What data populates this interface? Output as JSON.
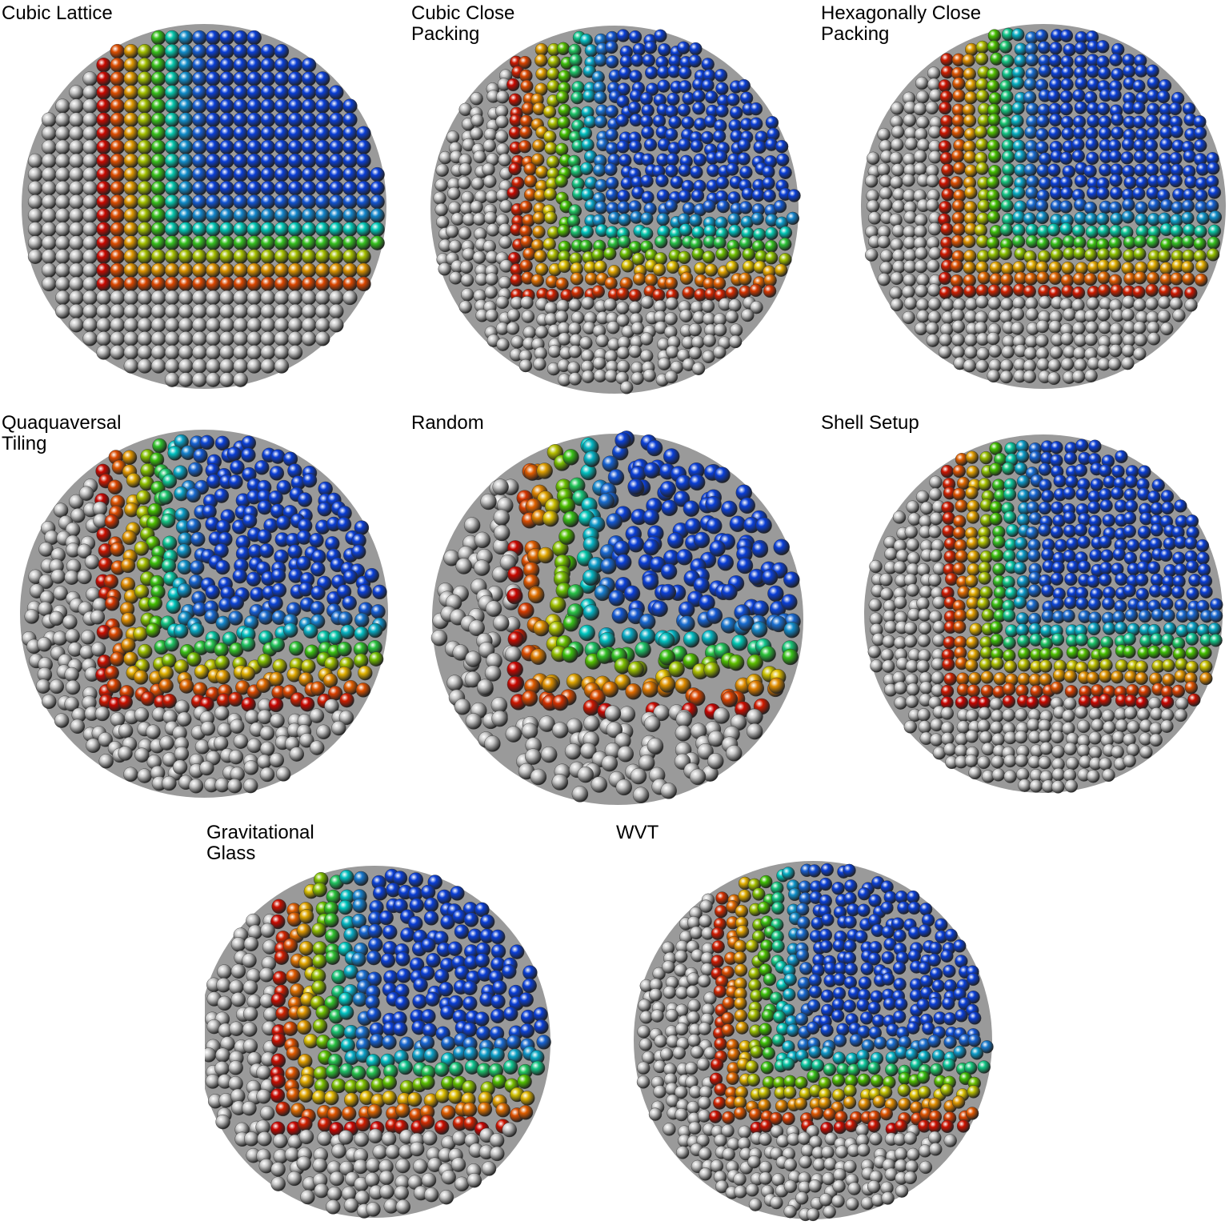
{
  "panels": [
    {
      "label": "Cubic Lattice",
      "arrangement": "lattice"
    },
    {
      "label": "Cubic Close\nPacking",
      "arrangement": "close"
    },
    {
      "label": "Hexagonally Close\nPacking",
      "arrangement": "hex"
    },
    {
      "label": "Quaquaversal\nTiling",
      "arrangement": "tiling"
    },
    {
      "label": "Random",
      "arrangement": "random"
    },
    {
      "label": "Shell Setup",
      "arrangement": "shell"
    },
    {
      "label": "Gravitational\nGlass",
      "arrangement": "glass"
    },
    {
      "label": "WVT",
      "arrangement": "wvt"
    }
  ],
  "colors": {
    "background": "#ffffff",
    "outer_particles": "#c8c8c8",
    "colormap": [
      "#c80000",
      "#e05a00",
      "#e0c000",
      "#40c000",
      "#00c8c0",
      "#1a6fd0",
      "#0a3fd8"
    ]
  }
}
